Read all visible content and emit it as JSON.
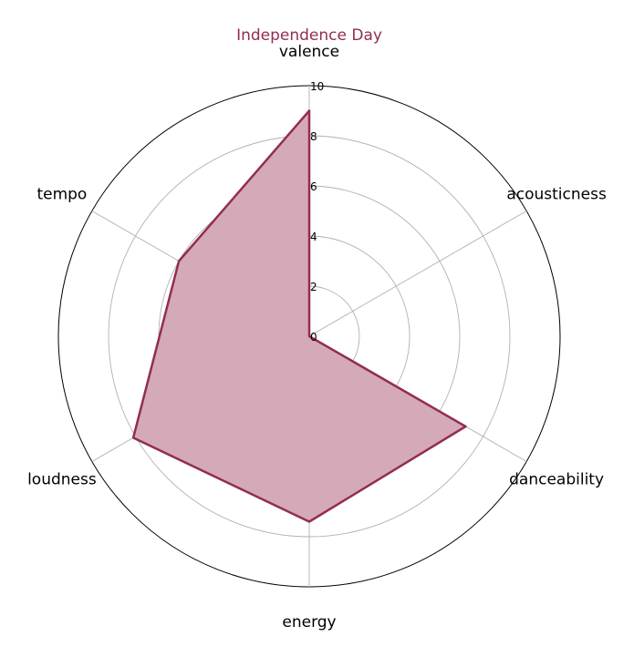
{
  "chart_data": {
    "type": "radar",
    "title": "Independence Day",
    "categories": [
      "valence",
      "acousticness",
      "danceability",
      "energy",
      "loudness",
      "tempo"
    ],
    "series": [
      {
        "values": [
          9,
          0,
          7.2,
          7.4,
          8.1,
          6
        ]
      }
    ],
    "rlim": [
      0,
      10
    ],
    "rticks": [
      "0",
      "2",
      "4",
      "6",
      "8",
      "10"
    ],
    "grid": true,
    "colors": {
      "line": "#932c55",
      "fill": "#d4a9b8",
      "grid": "#b0b0b0",
      "title": "#932c55"
    }
  }
}
